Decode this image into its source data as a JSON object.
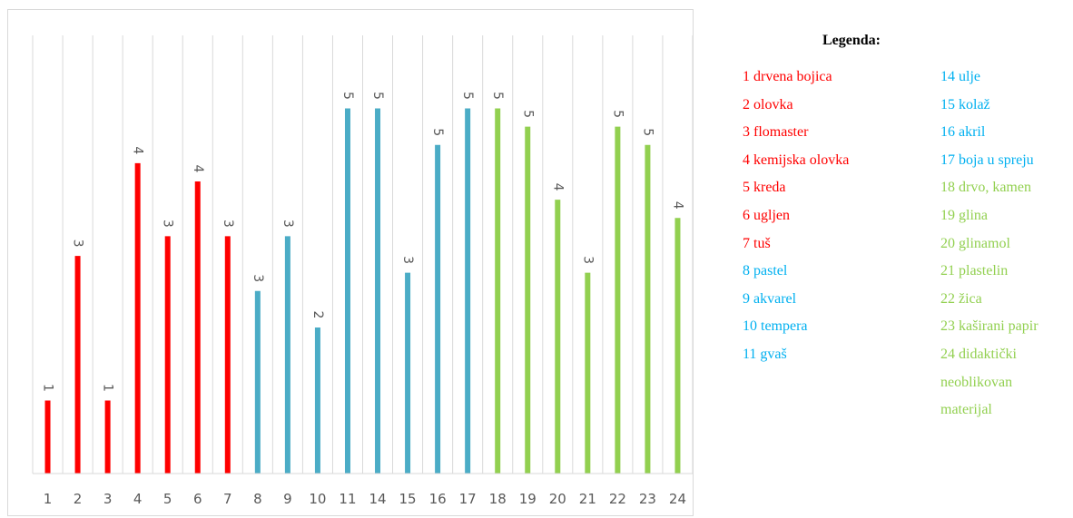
{
  "chart_data": {
    "type": "bar",
    "title": "",
    "xlabel": "",
    "ylabel": "",
    "ylim": [
      0,
      5.3
    ],
    "grid": "vertical",
    "categories": [
      "1",
      "2",
      "3",
      "4",
      "5",
      "6",
      "7",
      "8",
      "9",
      "10",
      "11",
      "14",
      "15",
      "16",
      "17",
      "18",
      "19",
      "20",
      "21",
      "22",
      "23",
      "24"
    ],
    "values": [
      1,
      3,
      1,
      4,
      3,
      4,
      3,
      3,
      3,
      2,
      5,
      5,
      3,
      5,
      5,
      5,
      5,
      4,
      3,
      5,
      5,
      4
    ],
    "plotted_heights": [
      1.0,
      2.98,
      1.0,
      4.25,
      3.25,
      4.0,
      3.25,
      2.5,
      3.25,
      2.0,
      5.0,
      5.0,
      2.75,
      4.5,
      5.0,
      5.0,
      4.75,
      3.75,
      2.75,
      4.75,
      4.5,
      3.5
    ],
    "bar_colors": [
      "#ff0000",
      "#ff0000",
      "#ff0000",
      "#ff0000",
      "#ff0000",
      "#ff0000",
      "#ff0000",
      "#4bacc6",
      "#4bacc6",
      "#4bacc6",
      "#4bacc6",
      "#4bacc6",
      "#4bacc6",
      "#4bacc6",
      "#4bacc6",
      "#92d050",
      "#92d050",
      "#92d050",
      "#92d050",
      "#92d050",
      "#92d050",
      "#92d050"
    ],
    "data_labels": [
      "1",
      "3",
      "1",
      "4",
      "3",
      "4",
      "3",
      "3",
      "3",
      "2",
      "5",
      "5",
      "3",
      "5",
      "5",
      "5",
      "5",
      "4",
      "3",
      "5",
      "5",
      "4"
    ],
    "legend_placement": "right"
  },
  "legend": {
    "title": "Legenda:",
    "items": [
      {
        "text": "1 drvena bojica",
        "color": "#ff0000"
      },
      {
        "text": "2 olovka",
        "color": "#ff0000"
      },
      {
        "text": "3 flomaster",
        "color": "#ff0000"
      },
      {
        "text": "4 kemijska olovka",
        "color": "#ff0000"
      },
      {
        "text": "5 kreda",
        "color": "#ff0000"
      },
      {
        "text": "6 ugljen",
        "color": "#ff0000"
      },
      {
        "text": "7 tuš",
        "color": "#ff0000"
      },
      {
        "text": "8 pastel",
        "color": "#00b0f0"
      },
      {
        "text": "9 akvarel",
        "color": "#00b0f0"
      },
      {
        "text": "10 tempera",
        "color": "#00b0f0"
      },
      {
        "text": "11 gvaš",
        "color": "#00b0f0"
      },
      {
        "text": "14 ulje",
        "color": "#00b0f0"
      },
      {
        "text": "15 kolaž",
        "color": "#00b0f0"
      },
      {
        "text": "16 akril",
        "color": "#00b0f0"
      },
      {
        "text": "17 boja u spreju",
        "color": "#00b0f0"
      },
      {
        "text": "18 drvo, kamen",
        "color": "#92d050"
      },
      {
        "text": "19 glina",
        "color": "#92d050"
      },
      {
        "text": "20 glinamol",
        "color": "#92d050"
      },
      {
        "text": "21 plastelin",
        "color": "#92d050"
      },
      {
        "text": "22 žica",
        "color": "#92d050"
      },
      {
        "text": "23 kaširani papir",
        "color": "#92d050"
      },
      {
        "text": "24 didaktički",
        "color": "#92d050"
      },
      {
        "text": "neoblikovan",
        "color": "#92d050"
      },
      {
        "text": "materijal",
        "color": "#92d050"
      }
    ]
  }
}
